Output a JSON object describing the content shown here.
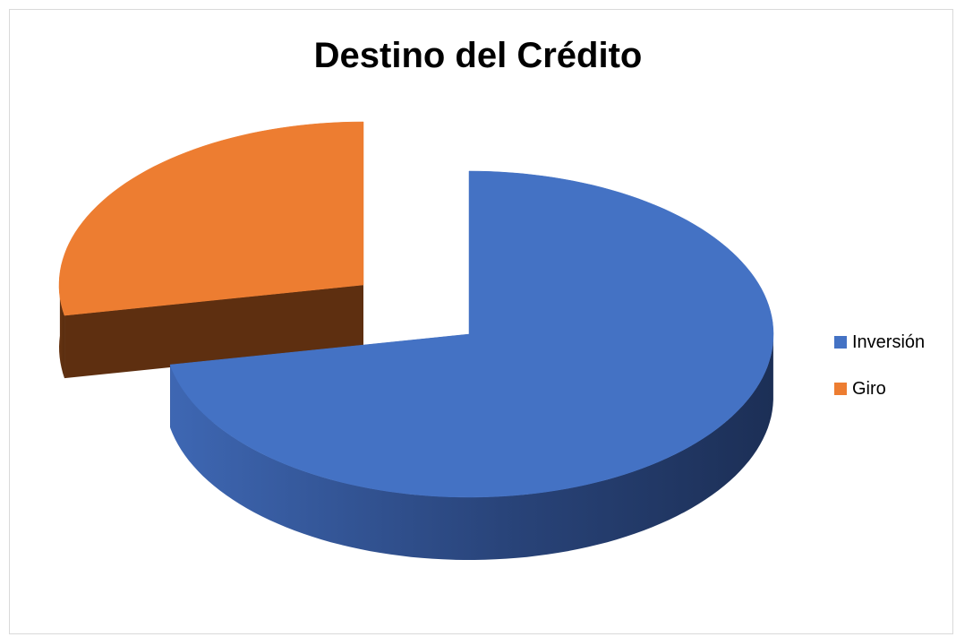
{
  "chart_data": {
    "type": "pie",
    "style": "3d-exploded",
    "title": "Destino del Crédito",
    "categories": [
      "Inversión",
      "Giro"
    ],
    "values": [
      72,
      28
    ],
    "colors": [
      "#4472c4",
      "#ed7d31"
    ],
    "legend_position": "right"
  }
}
